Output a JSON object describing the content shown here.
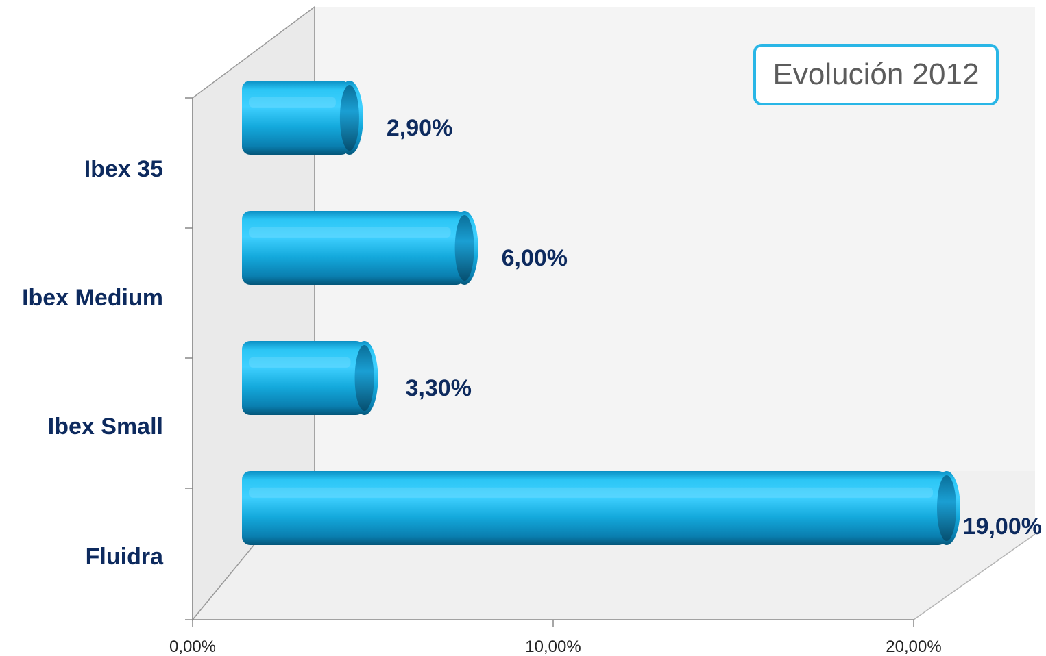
{
  "badge": {
    "text": "Evolución 2012"
  },
  "chart_data": {
    "type": "bar",
    "orientation": "horizontal",
    "style": "3d-cylinder",
    "categories": [
      "Ibex 35",
      "Ibex Medium",
      "Ibex Small",
      "Fluidra"
    ],
    "values": [
      2.9,
      6.0,
      3.3,
      19.0
    ],
    "value_labels": [
      "2,90%",
      "6,00%",
      "3,30%",
      "19,00%"
    ],
    "x_ticks": [
      "0,00%",
      "10,00%",
      "20,00%"
    ],
    "x_tick_values": [
      0,
      10,
      20
    ],
    "xlim": [
      0,
      20
    ],
    "title": "",
    "xlabel": "",
    "ylabel": "",
    "grid": false,
    "legend": "none",
    "colors": {
      "bar_light": "#3fd0ff",
      "bar_mid": "#14a9dc",
      "bar_dark": "#04567a",
      "cap": "#0b7fae",
      "label": "#0d2a5e",
      "wall": "#eaeaea",
      "back_wall": "#f4f4f4"
    }
  }
}
